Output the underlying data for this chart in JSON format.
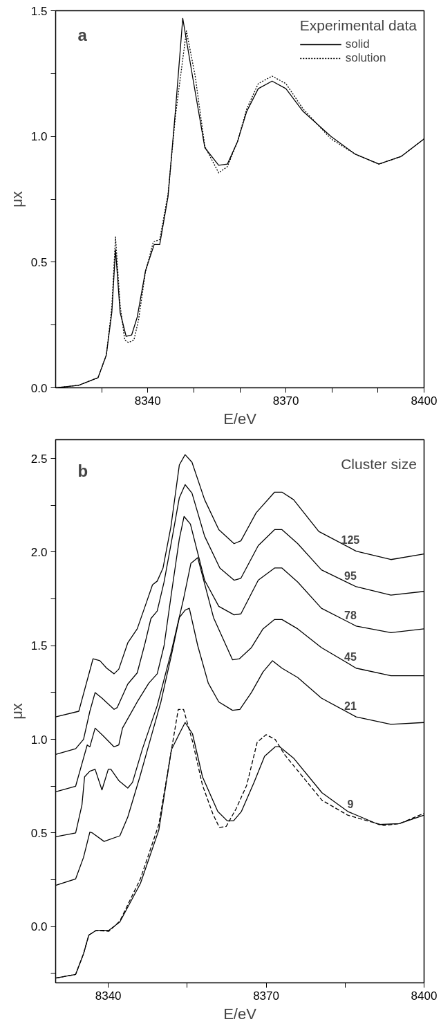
{
  "chart_data": [
    {
      "type": "line",
      "title": "a",
      "xlabel": "E/eV",
      "ylabel": "μx",
      "legend_title": "Experimental data",
      "legend": "top right",
      "grid": false,
      "xlim": [
        8320,
        8400
      ],
      "ylim": [
        0,
        1.5
      ],
      "xticks": [
        {
          "value": 8330,
          "label": null
        },
        8340,
        {
          "value": 8350,
          "label": null
        },
        {
          "value": 8360,
          "label": null
        },
        8370,
        {
          "value": 8380,
          "label": null
        },
        {
          "value": 8390,
          "label": null
        },
        8400
      ],
      "yticks": [
        {
          "value": 0,
          "label": "0.0"
        },
        {
          "value": 0.25,
          "label": null
        },
        {
          "value": 0.5,
          "label": "0.5"
        },
        {
          "value": 0.75,
          "label": null
        },
        {
          "value": 1,
          "label": "1.0"
        },
        {
          "value": 1.25,
          "label": null
        },
        {
          "value": 1.5,
          "label": "1.5"
        }
      ],
      "series": [
        {
          "name": "solid",
          "color": "#000000",
          "line_style": "solid",
          "x": [
            8320,
            8325,
            8329.2,
            8331,
            8332.2,
            8333.0,
            8334.0,
            8335.3,
            8336.5,
            8337.7,
            8339.5,
            8341.4,
            8342.6,
            8344.4,
            8346,
            8347.6,
            8349.9,
            8352.4,
            8355.4,
            8357.3,
            8359.5,
            8361.5,
            8364,
            8367.0,
            8370,
            8373.7,
            8379.8,
            8385,
            8390.2,
            8395,
            8400
          ],
          "values": [
            0,
            0.01,
            0.04,
            0.13,
            0.3,
            0.55,
            0.3,
            0.205,
            0.21,
            0.28,
            0.465,
            0.57,
            0.57,
            0.76,
            1.1,
            1.47,
            1.22,
            0.955,
            0.885,
            0.89,
            0.98,
            1.1,
            1.19,
            1.22,
            1.19,
            1.1,
            1.0,
            0.93,
            0.89,
            0.92,
            0.99
          ]
        },
        {
          "name": "solution",
          "color": "#000000",
          "line_style": "dotted",
          "x": [
            8320,
            8325,
            8329.2,
            8331,
            8332.2,
            8333.0,
            8334.0,
            8335.0,
            8335.8,
            8337.0,
            8338.0,
            8339.5,
            8341.2,
            8342.6,
            8344.4,
            8346,
            8348.4,
            8350.3,
            8352.4,
            8355.4,
            8357.3,
            8359.5,
            8361.5,
            8364,
            8367.0,
            8370,
            8373.7,
            8379.8,
            8385,
            8390.2,
            8395,
            8400
          ],
          "values": [
            0,
            0.01,
            0.04,
            0.13,
            0.32,
            0.6,
            0.33,
            0.19,
            0.18,
            0.19,
            0.27,
            0.46,
            0.58,
            0.59,
            0.77,
            1.08,
            1.42,
            1.24,
            0.96,
            0.855,
            0.88,
            0.98,
            1.11,
            1.21,
            1.24,
            1.21,
            1.11,
            0.99,
            0.93,
            0.89,
            0.92,
            0.99
          ]
        }
      ]
    },
    {
      "type": "line",
      "title": "b",
      "xlabel": "E/eV",
      "ylabel": "μx",
      "annotations": [
        "Cluster size"
      ],
      "legend": false,
      "grid": false,
      "xlim": [
        8330,
        8400
      ],
      "ylim": [
        -0.3,
        2.6
      ],
      "xticks": [
        8340,
        {
          "value": 8355,
          "label": null
        },
        8370,
        {
          "value": 8385,
          "label": null
        },
        8400
      ],
      "yticks": [
        {
          "value": -0.25,
          "label": null
        },
        {
          "value": 0,
          "label": "0.0"
        },
        {
          "value": 0.25,
          "label": null
        },
        {
          "value": 0.5,
          "label": "0.5"
        },
        {
          "value": 0.75,
          "label": null
        },
        {
          "value": 1,
          "label": "1.0"
        },
        {
          "value": 1.25,
          "label": null
        },
        {
          "value": 1.5,
          "label": "1.5"
        },
        {
          "value": 1.75,
          "label": null
        },
        {
          "value": 2,
          "label": "2.0"
        },
        {
          "value": 2.25,
          "label": null
        },
        {
          "value": 2.5,
          "label": "2.5"
        }
      ],
      "series": [
        {
          "name": "125",
          "color": "#000000",
          "line_style": "solid",
          "x": [
            8330,
            8334.4,
            8337.1,
            8338.4,
            8339.7,
            8341.1,
            8342.0,
            8343.7,
            8345.5,
            8347.3,
            8348.4,
            8349.3,
            8350.4,
            8351.9,
            8353.5,
            8354.6,
            8355.9,
            8358.3,
            8361.0,
            8363.9,
            8365.2,
            8368.1,
            8371.6,
            8373.0,
            8375.2,
            8380.0,
            8387.1,
            8393.7,
            8400
          ],
          "values": [
            1.12,
            1.15,
            1.43,
            1.42,
            1.38,
            1.35,
            1.375,
            1.515,
            1.59,
            1.735,
            1.825,
            1.845,
            1.915,
            2.135,
            2.465,
            2.52,
            2.48,
            2.28,
            2.12,
            2.045,
            2.06,
            2.21,
            2.32,
            2.32,
            2.28,
            2.11,
            2.005,
            1.96,
            1.99
          ]
        },
        {
          "name": "95",
          "color": "#000000",
          "line_style": "solid",
          "x": [
            8330,
            8333.8,
            8335.3,
            8336.5,
            8337.5,
            8338.8,
            8341.1,
            8341.7,
            8343.7,
            8345.5,
            8347.0,
            8348.1,
            8349.3,
            8350.6,
            8352.1,
            8353.5,
            8354.6,
            8355.9,
            8358.3,
            8361.2,
            8363.9,
            8365.2,
            8368.5,
            8371.6,
            8373.0,
            8376.0,
            8380.5,
            8387.1,
            8393.7,
            8400
          ],
          "values": [
            0.92,
            0.95,
            1.0,
            1.15,
            1.25,
            1.22,
            1.16,
            1.17,
            1.295,
            1.355,
            1.515,
            1.645,
            1.685,
            1.84,
            2.07,
            2.29,
            2.36,
            2.315,
            2.085,
            1.915,
            1.85,
            1.86,
            2.035,
            2.12,
            2.12,
            2.045,
            1.905,
            1.815,
            1.77,
            1.79
          ]
        },
        {
          "name": "78",
          "color": "#000000",
          "line_style": "solid",
          "x": [
            8330,
            8333.8,
            8335.3,
            8336.0,
            8336.5,
            8337.5,
            8339.0,
            8341.1,
            8342.0,
            8342.7,
            8345.5,
            8347.7,
            8349.3,
            8350.6,
            8352.1,
            8353.5,
            8354.4,
            8355.6,
            8358.3,
            8361.0,
            8363.9,
            8365.2,
            8368.5,
            8371.6,
            8373.0,
            8376.0,
            8380.5,
            8387.1,
            8393.7,
            8400
          ],
          "values": [
            0.72,
            0.75,
            0.9,
            0.97,
            0.96,
            1.06,
            1.02,
            0.96,
            0.97,
            1.06,
            1.2,
            1.3,
            1.35,
            1.5,
            1.8,
            2.07,
            2.19,
            2.15,
            1.85,
            1.71,
            1.665,
            1.67,
            1.85,
            1.915,
            1.915,
            1.84,
            1.7,
            1.605,
            1.57,
            1.59
          ]
        },
        {
          "name": "45",
          "color": "#000000",
          "line_style": "solid",
          "x": [
            8330,
            8333.8,
            8335.0,
            8335.5,
            8336.5,
            8337.5,
            8338.8,
            8340.0,
            8340.5,
            8342.0,
            8343.7,
            8344.6,
            8346.5,
            8349.3,
            8351.9,
            8354.3,
            8355.7,
            8357.0,
            8360.0,
            8363.6,
            8364.9,
            8367.2,
            8369.4,
            8371.6,
            8373.0,
            8376.0,
            8380.5,
            8387.1,
            8393.7,
            8400
          ],
          "values": [
            0.48,
            0.5,
            0.65,
            0.8,
            0.83,
            0.84,
            0.73,
            0.84,
            0.84,
            0.78,
            0.74,
            0.77,
            0.95,
            1.18,
            1.46,
            1.75,
            1.94,
            1.97,
            1.65,
            1.425,
            1.43,
            1.49,
            1.59,
            1.64,
            1.64,
            1.59,
            1.49,
            1.38,
            1.34,
            1.34
          ]
        },
        {
          "name": "21",
          "color": "#000000",
          "line_style": "solid",
          "x": [
            8330,
            8333.8,
            8335.3,
            8336.5,
            8337.0,
            8339.2,
            8342.2,
            8343.7,
            8346.0,
            8348.0,
            8350.0,
            8352.0,
            8353.5,
            8354.6,
            8355.4,
            8357.0,
            8359.0,
            8361.0,
            8363.6,
            8365.0,
            8367.2,
            8369.4,
            8371.2,
            8373.0,
            8376.0,
            8380.5,
            8387.1,
            8393.7,
            8400
          ],
          "values": [
            0.22,
            0.255,
            0.37,
            0.505,
            0.5,
            0.455,
            0.485,
            0.585,
            0.8,
            1.0,
            1.2,
            1.45,
            1.65,
            1.69,
            1.7,
            1.5,
            1.3,
            1.2,
            1.155,
            1.16,
            1.25,
            1.36,
            1.42,
            1.38,
            1.33,
            1.22,
            1.12,
            1.08,
            1.09
          ]
        },
        {
          "name": "9",
          "color": "#000000",
          "line_style": "solid",
          "x": [
            8330,
            8333.8,
            8335.3,
            8336.3,
            8337.7,
            8340.1,
            8342.2,
            8346.1,
            8349.6,
            8352.0,
            8353.5,
            8354.6,
            8356.0,
            8357.9,
            8360.8,
            8362.6,
            8363.8,
            8365.3,
            8367.7,
            8369.7,
            8371.7,
            8372.6,
            8375.2,
            8380.6,
            8385.5,
            8391.4,
            8395.3,
            8400
          ],
          "values": [
            -0.275,
            -0.255,
            -0.145,
            -0.045,
            -0.02,
            -0.02,
            0.025,
            0.23,
            0.515,
            0.945,
            1.03,
            1.09,
            1.03,
            0.8,
            0.615,
            0.565,
            0.565,
            0.615,
            0.77,
            0.91,
            0.96,
            0.96,
            0.9,
            0.715,
            0.615,
            0.545,
            0.55,
            0.595
          ]
        },
        {
          "color": "#000000",
          "line_style": "dashed",
          "x": [
            8330,
            8333.8,
            8335.3,
            8336.3,
            8337.7,
            8340.1,
            8342.2,
            8346.1,
            8349.6,
            8353.3,
            8354.3,
            8356.0,
            8357.9,
            8359.9,
            8361.1,
            8362.4,
            8364.3,
            8366.3,
            8368.3,
            8370.0,
            8371.7,
            8373.6,
            8380.6,
            8385.5,
            8392.4,
            8395.3,
            8400
          ],
          "values": [
            -0.275,
            -0.255,
            -0.145,
            -0.045,
            -0.02,
            -0.025,
            0.03,
            0.255,
            0.545,
            1.16,
            1.16,
            0.99,
            0.755,
            0.6,
            0.53,
            0.535,
            0.63,
            0.755,
            0.985,
            1.025,
            1.0,
            0.915,
            0.675,
            0.595,
            0.54,
            0.55,
            0.605
          ]
        }
      ]
    }
  ]
}
